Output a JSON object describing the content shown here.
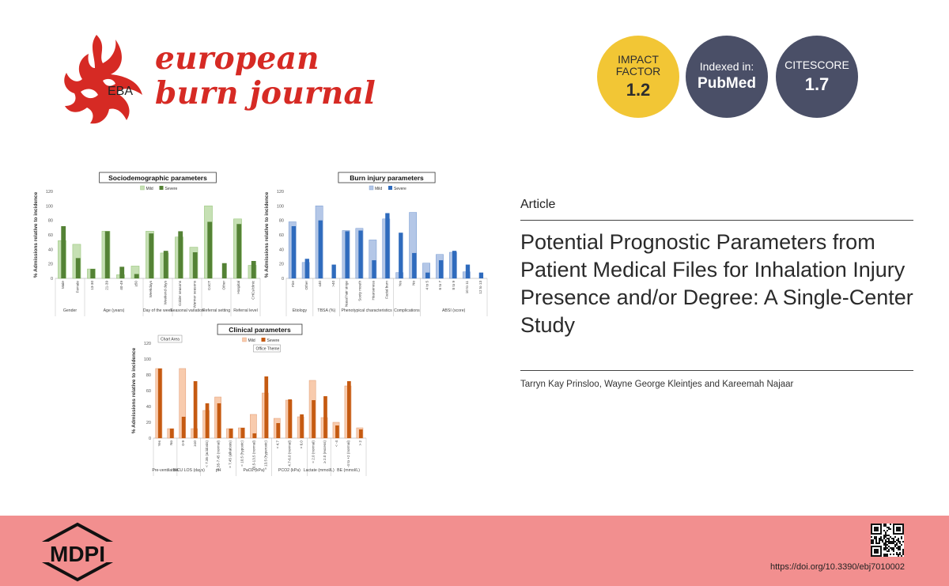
{
  "journal": {
    "logo_text": "EBA",
    "name_line1": "european",
    "name_line2": "burn journal"
  },
  "badges": {
    "impact": {
      "line1": "IMPACT",
      "line2": "FACTOR",
      "value": "1.2"
    },
    "indexed": {
      "line1": "Indexed in:",
      "value": "PubMed"
    },
    "citescore": {
      "line1": "CITESCORE",
      "value": "1.7"
    }
  },
  "colors": {
    "brand_red": "#d62a24",
    "impact_yellow": "#f2c635",
    "badge_slate": "#4a4f67",
    "footer_pink": "#f28f8f",
    "green_mild": "#c6e0b4",
    "green_severe": "#548235",
    "blue_mild": "#b4c7e7",
    "blue_severe": "#2f6bbd",
    "orange_mild": "#f8cbad",
    "orange_severe": "#c55a11"
  },
  "article": {
    "type": "Article",
    "title": "Potential Prognostic Parameters from Patient Medical Files for Inhalation Injury Presence and/or Degree: A Single-Center Study",
    "authors": "Tarryn Kay Prinsloo, Wayne George Kleintjes and Kareemah Najaar"
  },
  "footer": {
    "publisher": "MDPI",
    "doi": "https://doi.org/10.3390/ebj7010002"
  },
  "chart_data": [
    {
      "type": "bar",
      "title": "Sociodemographic parameters",
      "ylabel": "% Admissions relative to incidence",
      "ylim": [
        0,
        120
      ],
      "yticks": [
        0,
        20,
        40,
        60,
        80,
        100,
        120
      ],
      "categories": [
        "Male",
        "Female",
        "13-30",
        "21-39",
        "40-49",
        "≥50",
        "Weekdays",
        "Weekend days",
        "Colder seasons",
        "Warmer seasons",
        "CoCT",
        "Other",
        "Hospital",
        "CHCs/clinic"
      ],
      "groups": [
        {
          "label": "Gender",
          "span": 2
        },
        {
          "label": "Age (years)",
          "span": 4
        },
        {
          "label": "Day of the week",
          "span": 2
        },
        {
          "label": "Seasonal variation",
          "span": 2
        },
        {
          "label": "Referral setting",
          "span": 2
        },
        {
          "label": "Referral level",
          "span": 2
        }
      ],
      "legend": [
        "Mild",
        "Severe"
      ],
      "series": [
        {
          "name": "Mild",
          "values": [
            52,
            47,
            13,
            65,
            5,
            17,
            65,
            35,
            57,
            43,
            100,
            0,
            82,
            18
          ]
        },
        {
          "name": "Severe",
          "values": [
            72,
            28,
            13,
            65,
            16,
            6,
            62,
            38,
            65,
            36,
            78,
            21,
            75,
            24
          ]
        }
      ]
    },
    {
      "type": "bar",
      "title": "Burn injury parameters",
      "ylabel": "% Admissions relative to incidence",
      "ylim": [
        0,
        120
      ],
      "yticks": [
        0,
        20,
        40,
        60,
        80,
        100,
        120
      ],
      "categories": [
        "Fire",
        "Other",
        "≤40",
        ">40",
        "Nasal hair singe",
        "Sooty mouth",
        "Hoarseness",
        "Facial burn",
        "Yes",
        "No",
        "4 to 5",
        "6 to 7",
        "8 to 9",
        "10 to 11",
        "12 to 13"
      ],
      "groups": [
        {
          "label": "Etiology",
          "span": 2
        },
        {
          "label": "TBSA (%)",
          "span": 2
        },
        {
          "label": "Phenotypical characteristics",
          "span": 4
        },
        {
          "label": "Complications",
          "span": 2
        },
        {
          "label": "ABSI (score)",
          "span": 5
        }
      ],
      "legend": [
        "Mild",
        "Severe"
      ],
      "series": [
        {
          "name": "Mild",
          "values": [
            78,
            22,
            100,
            0,
            66,
            69,
            53,
            82,
            8,
            91,
            21,
            33,
            36,
            9,
            0
          ]
        },
        {
          "name": "Severe",
          "values": [
            72,
            27,
            80,
            19,
            65,
            66,
            25,
            90,
            63,
            35,
            8,
            25,
            38,
            19,
            8
          ]
        }
      ]
    },
    {
      "type": "bar",
      "title": "Clinical parameters",
      "ylabel": "% Admissions relative to incidence",
      "ylim": [
        0,
        120
      ],
      "yticks": [
        0,
        20,
        40,
        60,
        80,
        100,
        120
      ],
      "annotations": [
        "Chart Area",
        "Office Theme"
      ],
      "categories": [
        "Yes",
        "No",
        "0-9",
        "≥10",
        "< 7.35 (acidosis)",
        "7.35-7.45 (normal)",
        "> 7.45 (alkalosis)",
        "< 10.5 (hypoxic)",
        "10.5-13.5 (normal)",
        "> 13.5 (hyperoxic)",
        "< 4.7",
        "4.7-6.0 (normal)",
        "> 6.0",
        "< 2.0 (normal)",
        "≥ 2.0 (excess)",
        "< -4",
        "-4 to +2 (normal)",
        "> 2"
      ],
      "groups": [
        {
          "label": "Pre-ventilation",
          "span": 2
        },
        {
          "label": "BICU LOS (days)",
          "span": 2
        },
        {
          "label": "pH",
          "span": 3
        },
        {
          "label": "PaO2 (kPa)",
          "span": 3
        },
        {
          "label": "PCO2 (kPa)",
          "span": 3
        },
        {
          "label": "Lactate (mmol/L)",
          "span": 2
        },
        {
          "label": "BE (mmol/L)",
          "span": 3
        }
      ],
      "legend": [
        "Mild",
        "Severe"
      ],
      "series": [
        {
          "name": "Mild",
          "values": [
            88,
            12,
            88,
            12,
            35,
            52,
            12,
            13,
            30,
            57,
            25,
            48,
            27,
            73,
            26,
            20,
            66,
            13
          ]
        },
        {
          "name": "Severe",
          "values": [
            88,
            12,
            27,
            72,
            44,
            44,
            12,
            13,
            6,
            78,
            19,
            49,
            30,
            48,
            53,
            16,
            72,
            11
          ]
        }
      ]
    }
  ]
}
